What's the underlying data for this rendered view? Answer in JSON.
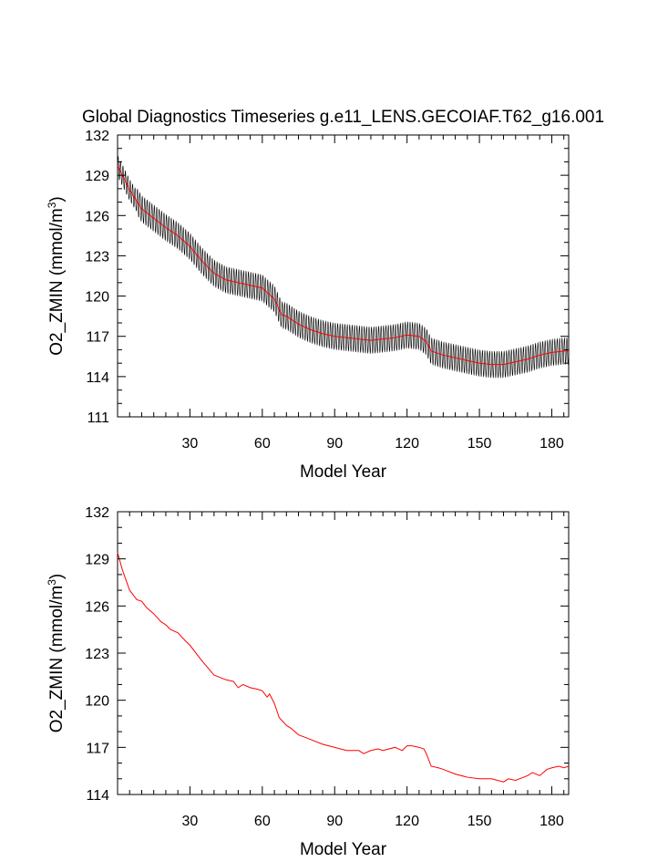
{
  "colors": {
    "frame": "#000000",
    "raw": "#000000",
    "smooth": "#ff0000"
  },
  "chart_data": [
    {
      "id": "top",
      "type": "line",
      "title": "Global Diagnostics Timeseries g.e11_LENS.GECOIAF.T62_g16.001",
      "ylabel_main": "O2_ZMIN (mmol/m",
      "ylabel_sup": "3",
      "ylabel_tail": ")",
      "xlabel": "Model Year",
      "xlim": [
        0,
        187
      ],
      "ylim": [
        111,
        132
      ],
      "xticks": [
        30,
        60,
        90,
        120,
        150,
        180
      ],
      "yticks": [
        111,
        114,
        117,
        120,
        123,
        126,
        129,
        132
      ],
      "grid": false,
      "series": [
        {
          "role": "monthly",
          "color": "#000000",
          "amplitude_start": 0.8,
          "amplitude": 1.0
        },
        {
          "role": "annual-mean",
          "color": "#ff0000"
        }
      ],
      "trend": {
        "x": [
          0,
          2,
          5,
          10,
          15,
          20,
          25,
          30,
          35,
          40,
          45,
          50,
          55,
          60,
          63,
          65,
          68,
          70,
          75,
          80,
          85,
          90,
          95,
          100,
          105,
          110,
          115,
          120,
          125,
          128,
          130,
          135,
          140,
          145,
          150,
          155,
          160,
          165,
          170,
          175,
          180,
          185,
          187
        ],
        "y": [
          129.7,
          129.0,
          127.9,
          126.5,
          125.8,
          125.1,
          124.5,
          123.7,
          122.6,
          121.7,
          121.2,
          121.0,
          120.8,
          120.6,
          120.1,
          119.8,
          118.6,
          118.5,
          117.9,
          117.5,
          117.2,
          117.0,
          116.9,
          116.8,
          116.7,
          116.8,
          116.9,
          117.1,
          117.0,
          116.6,
          115.9,
          115.6,
          115.4,
          115.2,
          115.0,
          114.9,
          114.9,
          115.1,
          115.3,
          115.6,
          115.8,
          115.9,
          115.9
        ]
      }
    },
    {
      "id": "bottom",
      "type": "line",
      "title": "",
      "ylabel_main": "O2_ZMIN (mmol/m",
      "ylabel_sup": "3",
      "ylabel_tail": ")",
      "xlabel": "Model Year",
      "xlim": [
        0,
        187
      ],
      "ylim": [
        114,
        132
      ],
      "xticks": [
        30,
        60,
        90,
        120,
        150,
        180
      ],
      "yticks": [
        114,
        117,
        120,
        123,
        126,
        129,
        132
      ],
      "grid": false,
      "series": [
        {
          "role": "annual-mean",
          "color": "#ff0000"
        }
      ],
      "trend": {
        "x": [
          0,
          2,
          5,
          8,
          10,
          12,
          15,
          18,
          20,
          22,
          25,
          28,
          30,
          35,
          40,
          45,
          48,
          50,
          52,
          55,
          58,
          60,
          62,
          63,
          65,
          67,
          70,
          72,
          75,
          80,
          85,
          90,
          95,
          100,
          102,
          105,
          108,
          110,
          115,
          118,
          120,
          122,
          125,
          127,
          128,
          130,
          133,
          135,
          140,
          145,
          150,
          155,
          160,
          162,
          165,
          170,
          172,
          175,
          178,
          180,
          183,
          185,
          187
        ],
        "y": [
          129.4,
          128.3,
          127.0,
          126.4,
          126.3,
          125.9,
          125.5,
          125.0,
          124.8,
          124.5,
          124.3,
          123.8,
          123.5,
          122.5,
          121.6,
          121.3,
          121.2,
          120.8,
          121.0,
          120.8,
          120.7,
          120.6,
          120.2,
          120.4,
          119.8,
          118.9,
          118.4,
          118.2,
          117.8,
          117.5,
          117.2,
          117.0,
          116.8,
          116.8,
          116.6,
          116.8,
          116.9,
          116.8,
          117.0,
          116.8,
          117.1,
          117.1,
          117.0,
          116.9,
          116.6,
          115.8,
          115.7,
          115.6,
          115.3,
          115.1,
          115.0,
          115.0,
          114.8,
          115.0,
          114.9,
          115.2,
          115.4,
          115.2,
          115.6,
          115.7,
          115.8,
          115.7,
          115.8
        ]
      }
    }
  ]
}
